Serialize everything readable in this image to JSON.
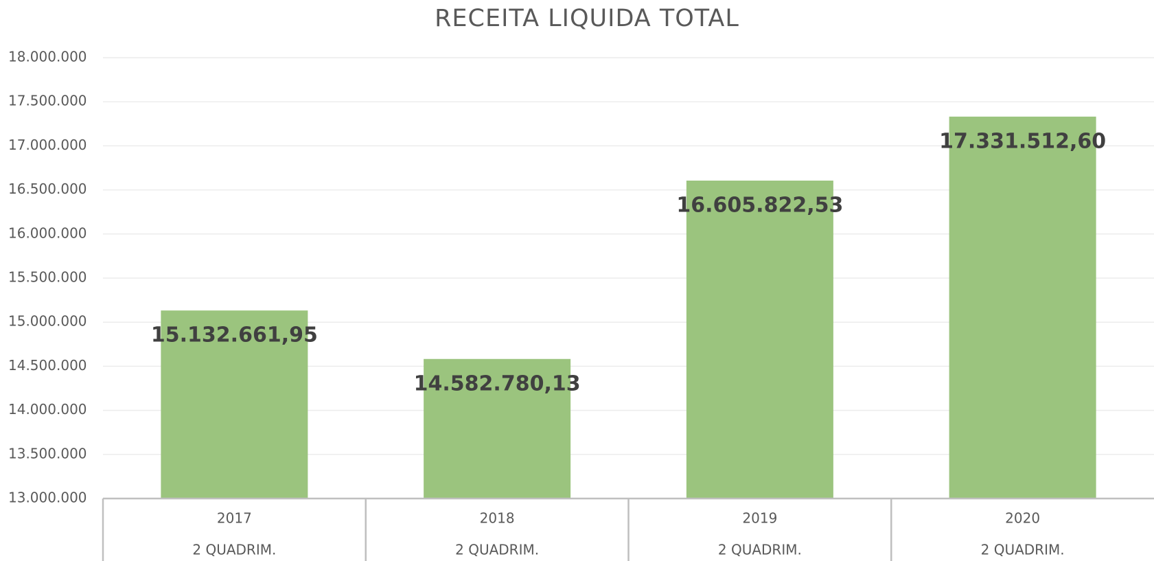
{
  "chart_data": {
    "type": "bar",
    "title": "RECEITA LIQUIDA TOTAL",
    "categories": [
      "2017",
      "2018",
      "2019",
      "2020"
    ],
    "subcategories": [
      "2 QUADRIM.",
      "2 QUADRIM.",
      "2 QUADRIM.",
      "2 QUADRIM."
    ],
    "values": [
      15132661.95,
      14582780.13,
      16605822.53,
      17331512.6
    ],
    "value_labels": [
      "15.132.661,95",
      "14.582.780,13",
      "16.605.822,53",
      "17.331.512,60"
    ],
    "color": "#9bc47e",
    "ylim": [
      13000000,
      18000000
    ],
    "yticks": [
      {
        "value": 13000000,
        "label": "13.000.000"
      },
      {
        "value": 13500000,
        "label": "13.500.000"
      },
      {
        "value": 14000000,
        "label": "14.000.000"
      },
      {
        "value": 14500000,
        "label": "14.500.000"
      },
      {
        "value": 15000000,
        "label": "15.000.000"
      },
      {
        "value": 15500000,
        "label": "15.500.000"
      },
      {
        "value": 16000000,
        "label": "16.000.000"
      },
      {
        "value": 16500000,
        "label": "16.500.000"
      },
      {
        "value": 17000000,
        "label": "17.000.000"
      },
      {
        "value": 17500000,
        "label": "17.500.000"
      },
      {
        "value": 18000000,
        "label": "18.000.000"
      }
    ],
    "grid": true
  }
}
